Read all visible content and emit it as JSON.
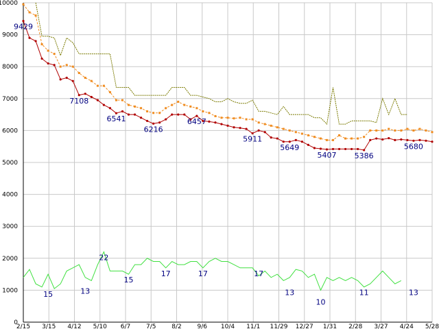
{
  "chart_data": {
    "type": "line",
    "ylim": [
      0,
      10000
    ],
    "y_ticks": [
      0,
      1000,
      2000,
      3000,
      4000,
      5000,
      6000,
      7000,
      8000,
      9000,
      10000
    ],
    "y_tick_labels": [
      "0",
      "1000",
      "2000",
      "3000",
      "4000",
      "5000",
      "6000",
      "7000",
      "8000",
      "9000",
      "10000"
    ],
    "x_tick_labels": [
      "2/15",
      "3/15",
      "4/12",
      "5/10",
      "6/7",
      "7/5",
      "8/2",
      "9/6",
      "10/4",
      "11/1",
      "11/29",
      "12/27",
      "1/31",
      "2/28",
      "3/27",
      "4/24",
      "5/28"
    ],
    "grid": true,
    "colors": {
      "price": "#b00000",
      "ma_orange": "#f08c20",
      "ma_olive": "#7a7a00",
      "volume": "#40e040",
      "grid": "#c8c8c8",
      "annotation": "#000080"
    },
    "series": [
      {
        "key": "price",
        "values": [
          9429,
          8900,
          8800,
          8250,
          8100,
          8050,
          7600,
          7650,
          7550,
          7108,
          7150,
          7050,
          6950,
          6800,
          6700,
          6541,
          6600,
          6500,
          6500,
          6400,
          6300,
          6216,
          6250,
          6350,
          6500,
          6500,
          6500,
          6350,
          6457,
          6300,
          6280,
          6250,
          6200,
          6150,
          6100,
          6080,
          6050,
          5911,
          6000,
          5950,
          5780,
          5750,
          5650,
          5649,
          5700,
          5650,
          5550,
          5450,
          5430,
          5407,
          5420,
          5420,
          5420,
          5420,
          5420,
          5386,
          5700,
          5750,
          5720,
          5760,
          5700,
          5720,
          5700,
          5680,
          5700,
          5680,
          5650
        ]
      },
      {
        "key": "ma_orange",
        "values": [
          9950,
          9700,
          9600,
          8700,
          8500,
          8400,
          8000,
          8050,
          8000,
          7800,
          7650,
          7550,
          7400,
          7400,
          7200,
          6950,
          6950,
          6800,
          6750,
          6700,
          6600,
          6550,
          6550,
          6700,
          6800,
          6900,
          6800,
          6750,
          6700,
          6600,
          6550,
          6450,
          6400,
          6400,
          6380,
          6400,
          6350,
          6350,
          6250,
          6200,
          6150,
          6100,
          6050,
          6000,
          5950,
          5900,
          5850,
          5800,
          5750,
          5700,
          5700,
          5850,
          5750,
          5750,
          5750,
          5800,
          6000,
          6000,
          6000,
          6050,
          6000,
          6000,
          6050,
          6000,
          6050,
          6000,
          5950
        ]
      },
      {
        "key": "ma_olive",
        "values": [
          null,
          null,
          10000,
          8950,
          8950,
          8900,
          8350,
          8900,
          8750,
          8400,
          8400,
          8400,
          8400,
          8400,
          8400,
          7350,
          7350,
          7350,
          7100,
          7100,
          7100,
          7100,
          7100,
          7100,
          7350,
          7350,
          7350,
          7100,
          7100,
          7050,
          7000,
          6900,
          6900,
          7000,
          6900,
          6850,
          6850,
          6950,
          6600,
          6600,
          6550,
          6500,
          6750,
          6500,
          6500,
          6500,
          6500,
          6400,
          6400,
          6200,
          7350,
          6200,
          6200,
          6300,
          6300,
          6300,
          6300,
          6250,
          7000,
          6500,
          7000,
          6500,
          6500
        ]
      },
      {
        "key": "volume",
        "values": [
          1400,
          1650,
          1200,
          1100,
          1500,
          1050,
          1200,
          1600,
          1700,
          1800,
          1400,
          1300,
          1800,
          2200,
          1600,
          1600,
          1600,
          1500,
          1800,
          1800,
          2000,
          1900,
          1900,
          1700,
          1900,
          1800,
          1800,
          1900,
          1900,
          1700,
          1900,
          2000,
          1900,
          1900,
          1800,
          1700,
          1700,
          1700,
          1450,
          1600,
          1400,
          1500,
          1300,
          1400,
          1650,
          1600,
          1400,
          1500,
          1000,
          1400,
          1300,
          1400,
          1300,
          1400,
          1300,
          1100,
          1200,
          1400,
          1600,
          1400,
          1200,
          1300
        ]
      }
    ],
    "annotations": [
      {
        "text": "9429",
        "x": 0,
        "y": 9429
      },
      {
        "text": "7108",
        "x": 9,
        "y": 7108
      },
      {
        "text": "6541",
        "x": 15,
        "y": 6541
      },
      {
        "text": "6216",
        "x": 21,
        "y": 6216
      },
      {
        "text": "6457",
        "x": 28,
        "y": 6457
      },
      {
        "text": "5911",
        "x": 37,
        "y": 5911
      },
      {
        "text": "5649",
        "x": 43,
        "y": 5649
      },
      {
        "text": "5407",
        "x": 49,
        "y": 5407
      },
      {
        "text": "5386",
        "x": 55,
        "y": 5386
      },
      {
        "text": "5680",
        "x": 63,
        "y": 5680
      },
      {
        "text": "15",
        "x": 4,
        "y": 1050
      },
      {
        "text": "13",
        "x": 10,
        "y": 1150
      },
      {
        "text": "22",
        "x": 13,
        "y": 2200
      },
      {
        "text": "15",
        "x": 17,
        "y": 1500
      },
      {
        "text": "17",
        "x": 23,
        "y": 1700
      },
      {
        "text": "17",
        "x": 29,
        "y": 1700
      },
      {
        "text": "17",
        "x": 38,
        "y": 1700
      },
      {
        "text": "13",
        "x": 43,
        "y": 1100
      },
      {
        "text": "10",
        "x": 48,
        "y": 800
      },
      {
        "text": "11",
        "x": 55,
        "y": 1100
      },
      {
        "text": "13",
        "x": 63,
        "y": 1100
      }
    ]
  }
}
